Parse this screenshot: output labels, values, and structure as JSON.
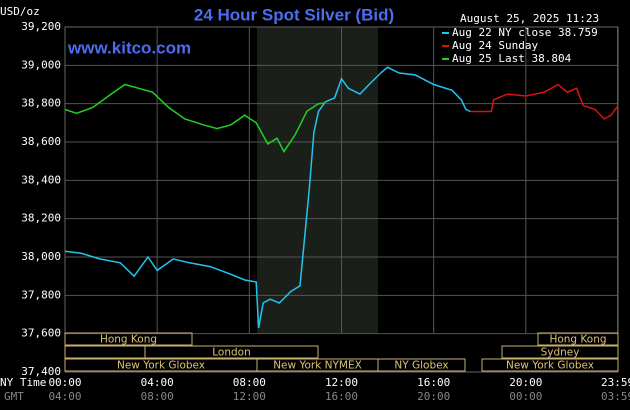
{
  "chart_data": {
    "type": "line",
    "title": "24 Hour Spot Silver (Bid)",
    "site": "www.kitco.com",
    "unit": "USD/oz",
    "timestamp": "August 25, 2025 11:23",
    "x_axis_label": "NY Time",
    "x2_axis_label": "GMT",
    "xlim": [
      0,
      24
    ],
    "xticks": [
      {
        "value": 0,
        "label": "00:00"
      },
      {
        "value": 4,
        "label": "04:00"
      },
      {
        "value": 8,
        "label": "08:00"
      },
      {
        "value": 12,
        "label": "12:00"
      },
      {
        "value": 16,
        "label": "16:00"
      },
      {
        "value": 20,
        "label": "20:00"
      },
      {
        "value": 23.98,
        "label": "23:59"
      }
    ],
    "gmt_labels": [
      "04:00",
      "08:00",
      "12:00",
      "16:00",
      "20:00",
      "00:00",
      "03:59"
    ],
    "ylim": [
      37400,
      39200
    ],
    "yticks": [
      {
        "value": 37400,
        "label": "37,400"
      },
      {
        "value": 37600,
        "label": "37,600"
      },
      {
        "value": 37800,
        "label": "37,800"
      },
      {
        "value": 38000,
        "label": "38,000"
      },
      {
        "value": 38200,
        "label": "38,200"
      },
      {
        "value": 38400,
        "label": "38,400"
      },
      {
        "value": 38600,
        "label": "38,600"
      },
      {
        "value": 38800,
        "label": "38,800"
      },
      {
        "value": 39000,
        "label": "39,000"
      },
      {
        "value": 39200,
        "label": "39,200"
      }
    ],
    "grid": true,
    "sessions": [
      "Hong Kong",
      "Hong Kong",
      "London",
      "Sydney",
      "New York Globex",
      "New York NYMEX",
      "NY Globex",
      "New York Globex"
    ],
    "series": [
      {
        "name": "Aug 22 NY close 38.759",
        "color": "#22c4f0",
        "x": [
          0,
          0.7,
          1.5,
          2.4,
          3.0,
          3.6,
          4.0,
          4.7,
          5.4,
          6.3,
          7.2,
          7.8,
          8.3,
          8.4,
          8.6,
          8.9,
          9.3,
          9.8,
          10.2,
          10.4,
          10.6,
          10.8,
          11.0,
          11.3,
          11.7,
          12.0,
          12.3,
          12.8,
          13.2,
          13.7,
          14.0,
          14.5,
          15.2,
          16.0,
          16.8,
          17.2,
          17.4,
          17.6
        ],
        "values": [
          38030,
          38020,
          37990,
          37970,
          37900,
          38000,
          37930,
          37990,
          37970,
          37950,
          37910,
          37880,
          37870,
          37630,
          37760,
          37780,
          37760,
          37820,
          37850,
          38100,
          38350,
          38650,
          38760,
          38810,
          38830,
          38930,
          38880,
          38850,
          38900,
          38960,
          38990,
          38960,
          38950,
          38900,
          38870,
          38820,
          38770,
          38759
        ]
      },
      {
        "name": "Aug 24 Sunday",
        "color": "#e01010",
        "x": [
          17.6,
          18.5,
          18.6,
          19.2,
          20.0,
          20.8,
          21.4,
          21.8,
          22.2,
          22.5,
          23.0,
          23.4,
          23.7,
          24.0
        ],
        "values": [
          38759,
          38759,
          38820,
          38850,
          38840,
          38860,
          38900,
          38860,
          38880,
          38790,
          38770,
          38720,
          38740,
          38790
        ]
      },
      {
        "name": "Aug 25 Last 38.804",
        "color": "#22d022",
        "x": [
          0,
          0.5,
          1.2,
          2.0,
          2.6,
          3.2,
          3.8,
          4.5,
          5.2,
          6.0,
          6.6,
          7.2,
          7.8,
          8.3,
          8.8,
          9.2,
          9.5,
          10.0,
          10.5,
          11.0,
          11.3
        ],
        "values": [
          38770,
          38750,
          38780,
          38850,
          38900,
          38880,
          38860,
          38780,
          38720,
          38690,
          38670,
          38690,
          38740,
          38700,
          38590,
          38620,
          38550,
          38640,
          38760,
          38800,
          38804
        ]
      }
    ]
  }
}
